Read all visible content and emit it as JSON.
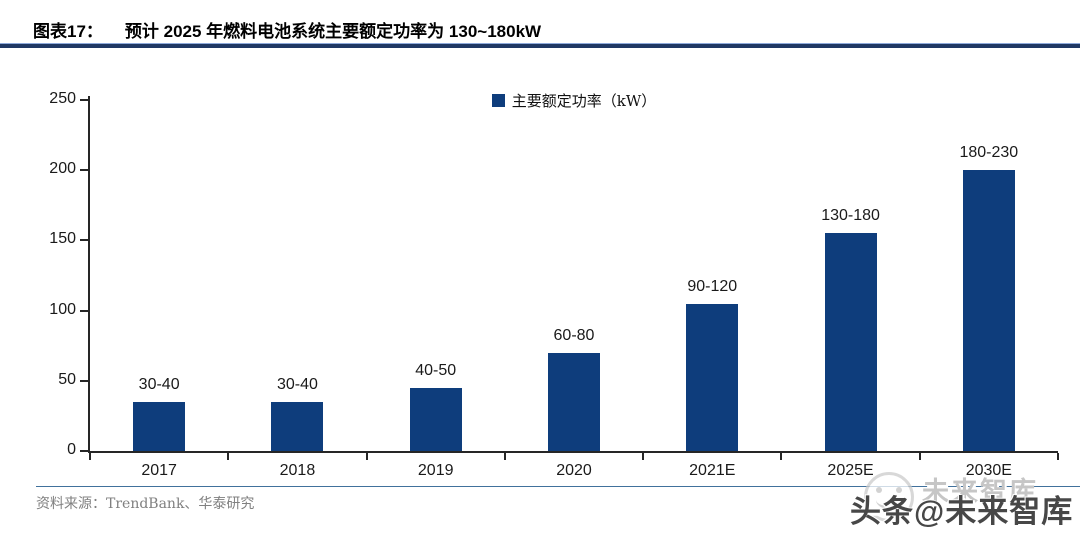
{
  "header": {
    "figure_label": "图表17：",
    "title": "预计 2025 年燃料电池系统主要额定功率为 130~180kW"
  },
  "chart_data": {
    "type": "bar",
    "title": "",
    "legend": [
      "主要额定功率（kW）"
    ],
    "legend_position": "top-center",
    "categories": [
      "2017",
      "2018",
      "2019",
      "2020",
      "2021E",
      "2025E",
      "2030E"
    ],
    "values": [
      35,
      35,
      45,
      70,
      105,
      155,
      200
    ],
    "bar_labels": [
      "30-40",
      "30-40",
      "40-50",
      "60-80",
      "90-120",
      "130-180",
      "180-230"
    ],
    "xlabel": "",
    "ylabel": "",
    "ylim": [
      0,
      250
    ],
    "yticks": [
      0,
      50,
      100,
      150,
      200,
      250
    ],
    "grid": false,
    "bar_color": "#0E3D7C"
  },
  "footer": {
    "source": "资料来源：TrendBank、华泰研究"
  },
  "watermark": {
    "ghost_text": "未来智库",
    "main_text": "头条@未来智库",
    "icon": "smiley-face-icon"
  },
  "colors": {
    "bar": "#0E3D7C",
    "title_rule": "#1F3864",
    "footer_rule": "#41719C",
    "source_text": "#808080",
    "axis": "#262626"
  }
}
